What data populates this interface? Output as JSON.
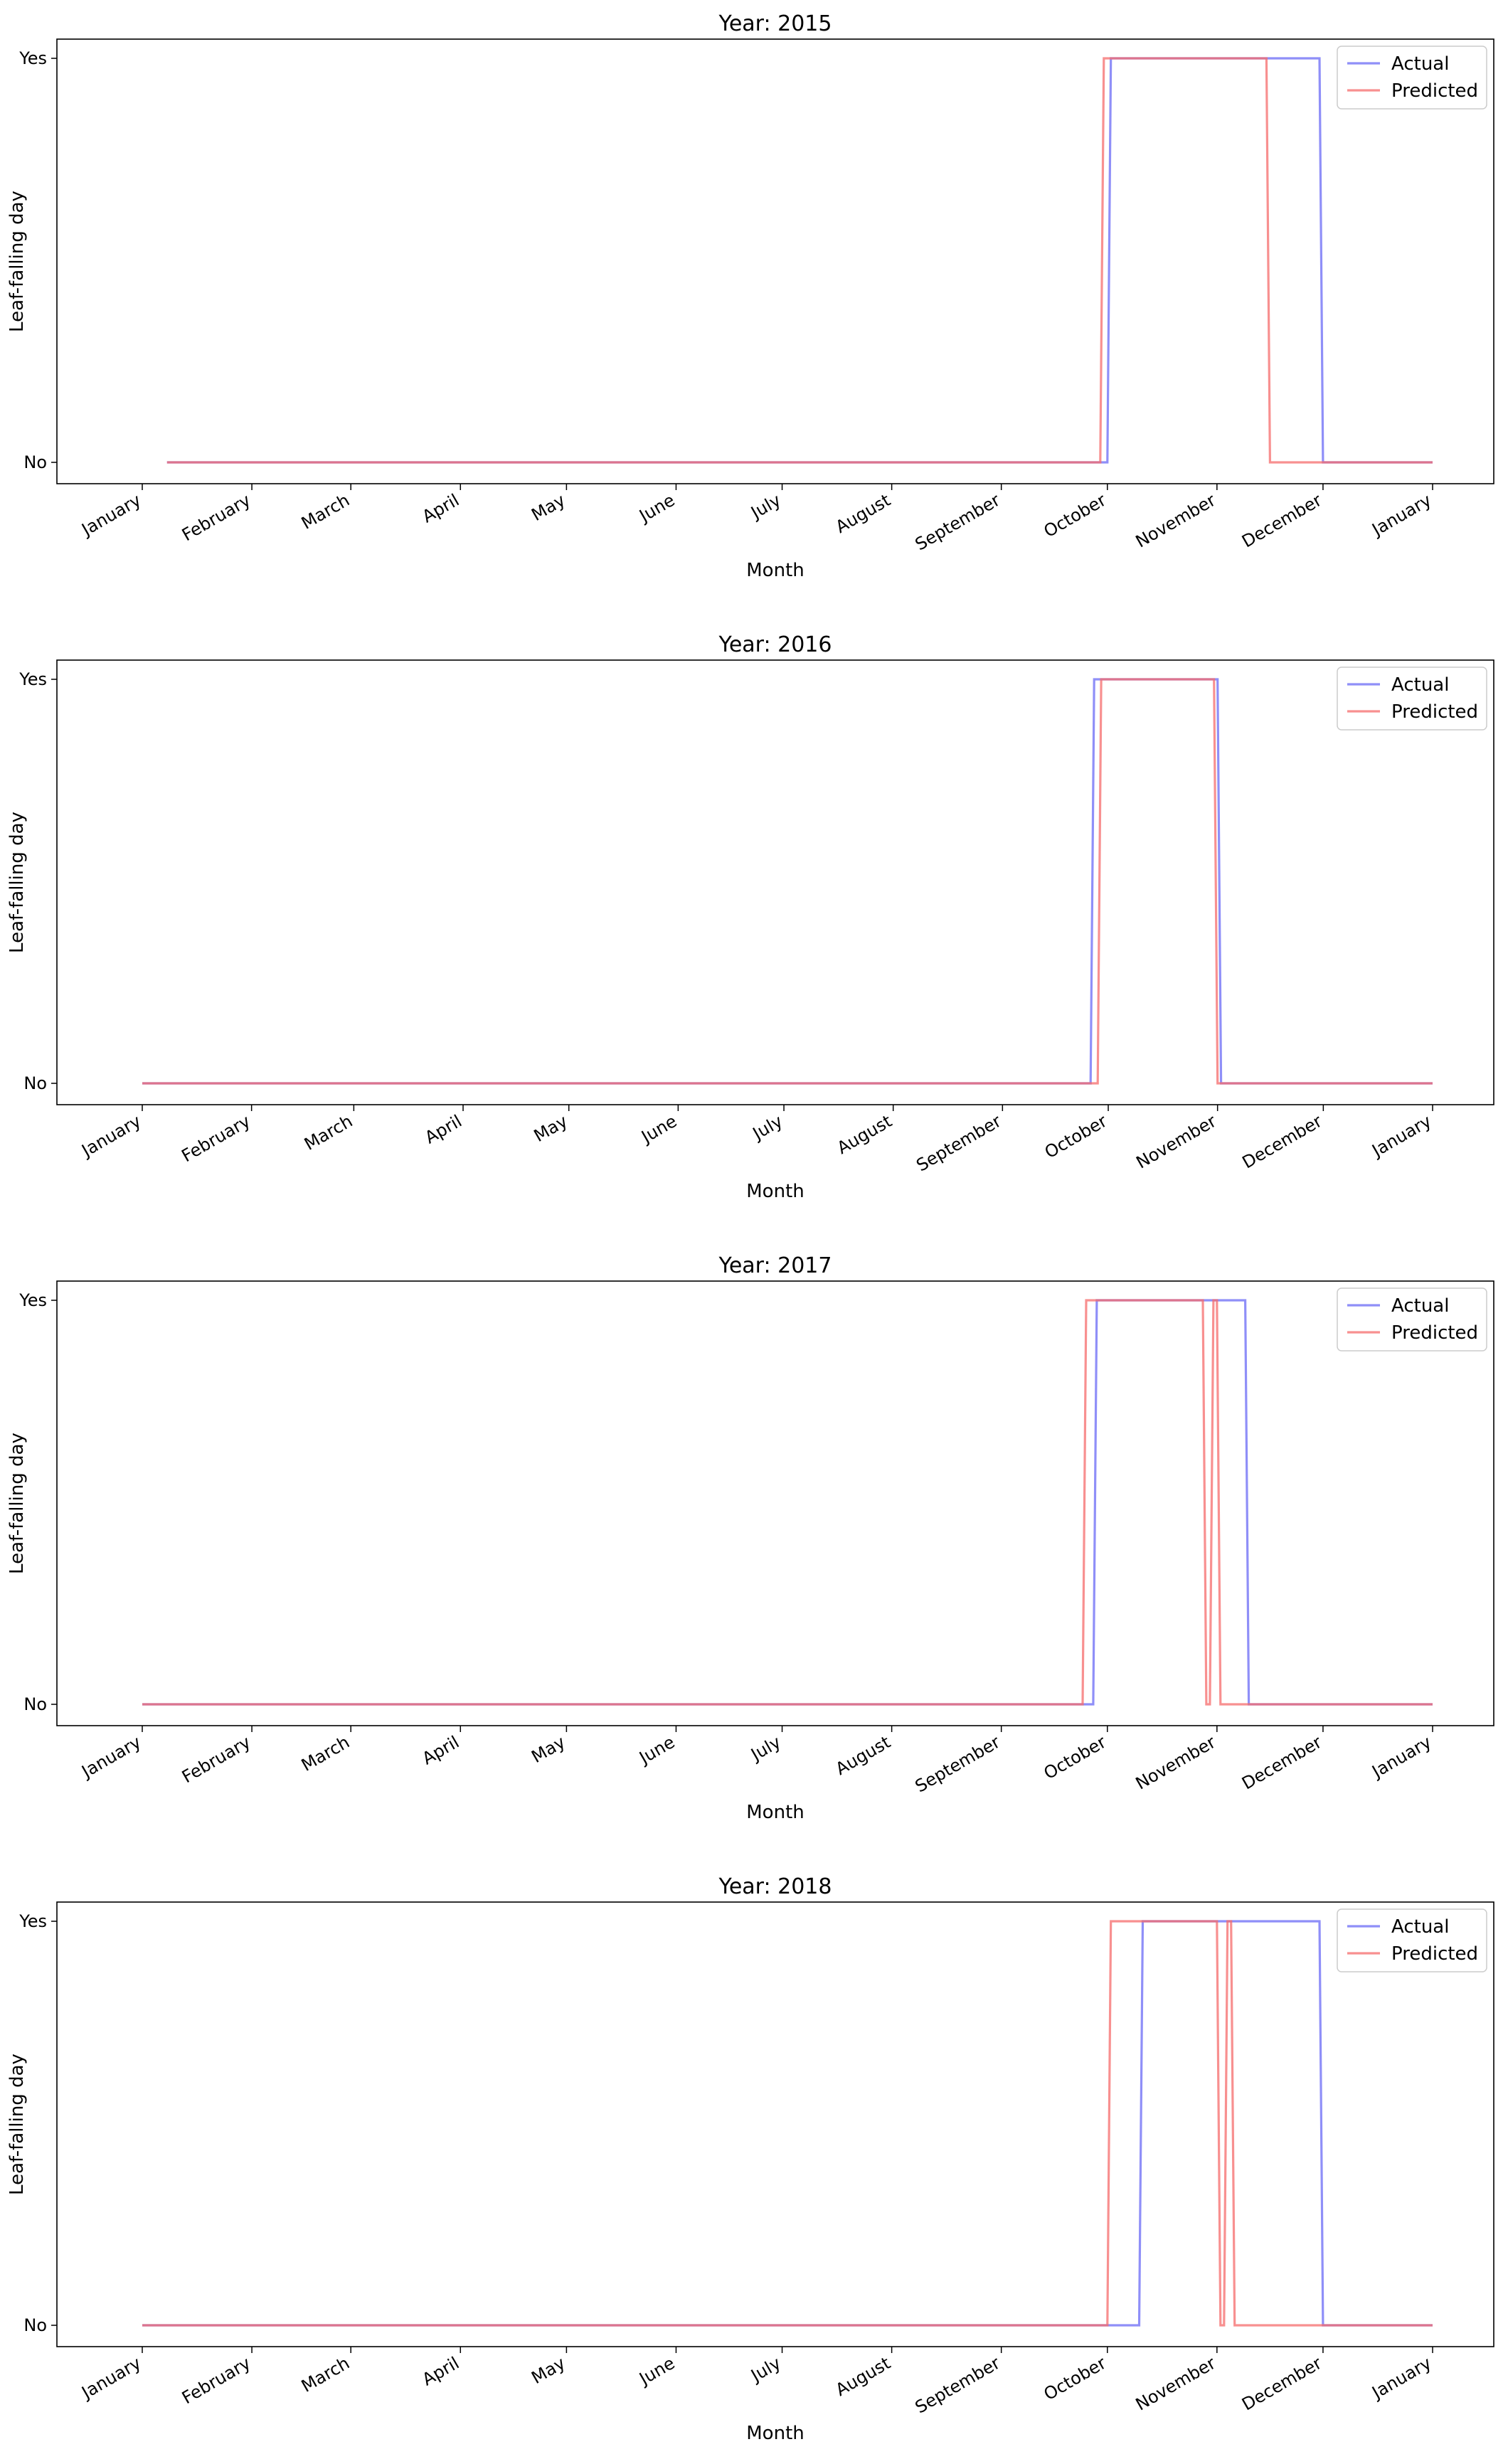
{
  "colors": {
    "actual": "#6a6af5",
    "predicted": "#f56b6b",
    "overlap": "#b35c9e"
  },
  "chart_data": [
    {
      "type": "line",
      "title": "Year: 2015",
      "xlabel": "Month",
      "ylabel": "Leaf-falling day",
      "x_ticks": [
        "January",
        "February",
        "March",
        "April",
        "May",
        "June",
        "July",
        "August",
        "September",
        "October",
        "November",
        "December",
        "January"
      ],
      "y_ticks": [
        "No",
        "Yes"
      ],
      "legend": [
        "Actual",
        "Predicted"
      ],
      "legend_position": "top-right",
      "series": [
        {
          "name": "Actual",
          "x": [
            "2015-01-08",
            "2015-10-01",
            "2015-10-02",
            "2015-11-30",
            "2015-12-01",
            "2016-01-01"
          ],
          "y": [
            "No",
            "No",
            "Yes",
            "Yes",
            "No",
            "No"
          ]
        },
        {
          "name": "Predicted",
          "x": [
            "2015-01-08",
            "2015-09-29",
            "2015-09-30",
            "2015-11-15",
            "2015-11-16",
            "2016-01-01"
          ],
          "y": [
            "No",
            "No",
            "Yes",
            "Yes",
            "No",
            "No"
          ]
        }
      ]
    },
    {
      "type": "line",
      "title": "Year: 2016",
      "xlabel": "Month",
      "ylabel": "Leaf-falling day",
      "x_ticks": [
        "January",
        "February",
        "March",
        "April",
        "May",
        "June",
        "July",
        "August",
        "September",
        "October",
        "November",
        "December",
        "January"
      ],
      "y_ticks": [
        "No",
        "Yes"
      ],
      "legend": [
        "Actual",
        "Predicted"
      ],
      "legend_position": "top-right",
      "series": [
        {
          "name": "Actual",
          "x": [
            "2016-01-01",
            "2016-09-26",
            "2016-09-27",
            "2016-11-01",
            "2016-11-02",
            "2017-01-01"
          ],
          "y": [
            "No",
            "No",
            "Yes",
            "Yes",
            "No",
            "No"
          ]
        },
        {
          "name": "Predicted",
          "x": [
            "2016-01-01",
            "2016-09-28",
            "2016-09-29",
            "2016-10-31",
            "2016-11-01",
            "2017-01-01"
          ],
          "y": [
            "No",
            "No",
            "Yes",
            "Yes",
            "No",
            "No"
          ]
        }
      ]
    },
    {
      "type": "line",
      "title": "Year: 2017",
      "xlabel": "Month",
      "ylabel": "Leaf-falling day",
      "x_ticks": [
        "January",
        "February",
        "March",
        "April",
        "May",
        "June",
        "July",
        "August",
        "September",
        "October",
        "November",
        "December",
        "January"
      ],
      "y_ticks": [
        "No",
        "Yes"
      ],
      "legend": [
        "Actual",
        "Predicted"
      ],
      "legend_position": "top-right",
      "series": [
        {
          "name": "Actual",
          "x": [
            "2017-01-01",
            "2017-09-27",
            "2017-09-28",
            "2017-11-09",
            "2017-11-10",
            "2018-01-01"
          ],
          "y": [
            "No",
            "No",
            "Yes",
            "Yes",
            "No",
            "No"
          ]
        },
        {
          "name": "Predicted",
          "x": [
            "2017-01-01",
            "2017-09-24",
            "2017-09-25",
            "2017-10-28",
            "2017-10-29",
            "2017-10-30",
            "2017-10-31",
            "2017-11-01",
            "2017-11-02",
            "2018-01-01"
          ],
          "y": [
            "No",
            "No",
            "Yes",
            "Yes",
            "No",
            "No",
            "Yes",
            "Yes",
            "No",
            "No"
          ]
        }
      ]
    },
    {
      "type": "line",
      "title": "Year: 2018",
      "xlabel": "Month",
      "ylabel": "Leaf-falling day",
      "x_ticks": [
        "January",
        "February",
        "March",
        "April",
        "May",
        "June",
        "July",
        "August",
        "September",
        "October",
        "November",
        "December",
        "January"
      ],
      "y_ticks": [
        "No",
        "Yes"
      ],
      "legend": [
        "Actual",
        "Predicted"
      ],
      "legend_position": "top-right",
      "series": [
        {
          "name": "Actual",
          "x": [
            "2018-01-01",
            "2018-10-10",
            "2018-10-11",
            "2018-11-30",
            "2018-12-01",
            "2019-01-01"
          ],
          "y": [
            "No",
            "No",
            "Yes",
            "Yes",
            "No",
            "No"
          ]
        },
        {
          "name": "Predicted",
          "x": [
            "2018-01-01",
            "2018-10-01",
            "2018-10-02",
            "2018-11-01",
            "2018-11-02",
            "2018-11-03",
            "2018-11-04",
            "2018-11-05",
            "2018-11-06",
            "2019-01-01"
          ],
          "y": [
            "No",
            "No",
            "Yes",
            "Yes",
            "No",
            "No",
            "Yes",
            "Yes",
            "No",
            "No"
          ]
        }
      ]
    }
  ]
}
